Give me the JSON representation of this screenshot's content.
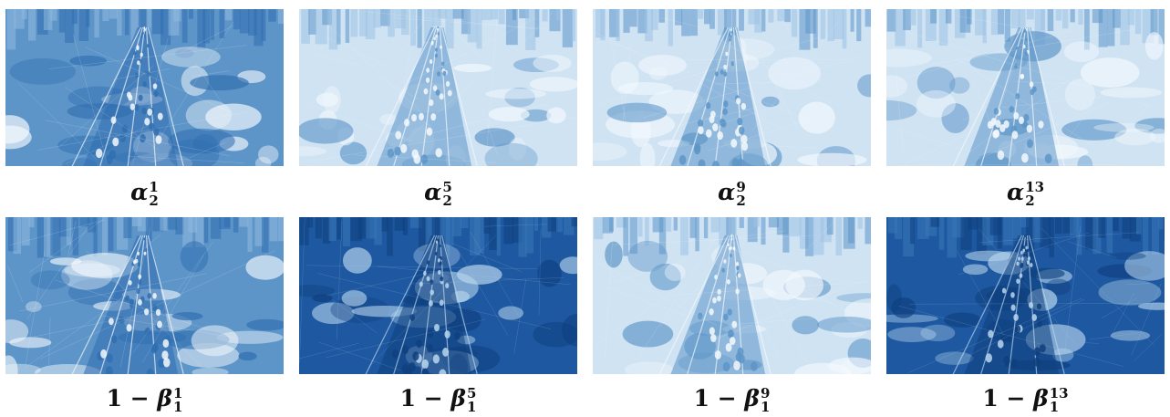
{
  "rows": [
    {
      "symbol": "α",
      "prefix": "",
      "subscript": "2",
      "panels": [
        {
          "superscript": "1",
          "shade": "medium"
        },
        {
          "superscript": "5",
          "shade": "light"
        },
        {
          "superscript": "9",
          "shade": "light"
        },
        {
          "superscript": "13",
          "shade": "light"
        }
      ]
    },
    {
      "symbol": "β",
      "prefix": "1 − ",
      "subscript": "1",
      "panels": [
        {
          "superscript": "1",
          "shade": "medium"
        },
        {
          "superscript": "5",
          "shade": "dark"
        },
        {
          "superscript": "9",
          "shade": "light"
        },
        {
          "superscript": "13",
          "shade": "dark"
        }
      ]
    }
  ],
  "colors": {
    "light": "#cfe3f3",
    "medium": "#5d95c8",
    "dark": "#1d58a0",
    "highlight": "#f4f9fd"
  }
}
